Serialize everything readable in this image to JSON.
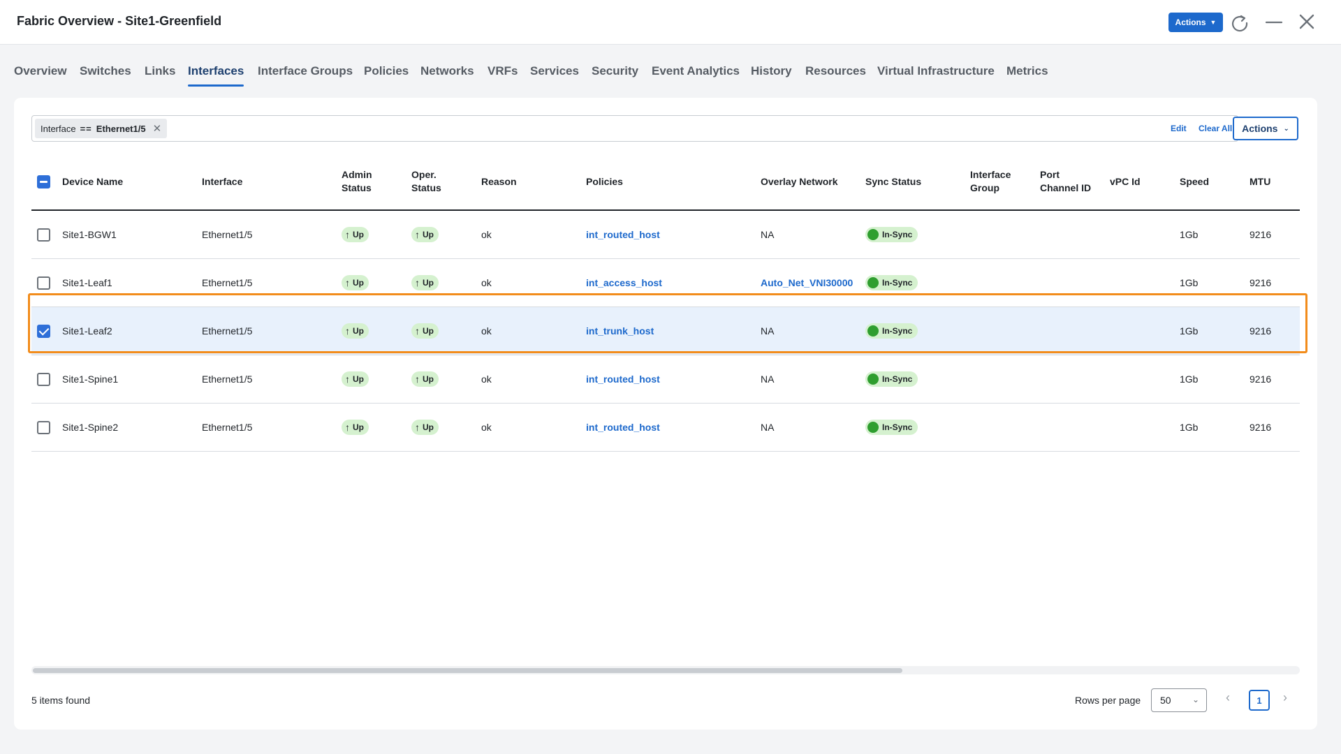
{
  "window": {
    "title": "Fabric Overview - Site1-Greenfield",
    "actions_label": "Actions",
    "icons": [
      "refresh-icon",
      "minimize-icon",
      "close-icon"
    ]
  },
  "tabs": [
    "Overview",
    "Switches",
    "Links",
    "Interfaces",
    "Interface Groups",
    "Policies",
    "Networks",
    "VRFs",
    "Services",
    "Security",
    "Event Analytics",
    "History",
    "Resources",
    "Virtual Infrastructure",
    "Metrics"
  ],
  "active_tab": "Interfaces",
  "filter": {
    "field": "Interface",
    "operator": "==",
    "value": "Ethernet1/5",
    "edit_label": "Edit",
    "clear_all_label": "Clear All"
  },
  "table_actions_label": "Actions",
  "columns": {
    "device_name": "Device Name",
    "interface": "Interface",
    "admin_status_1": "Admin",
    "admin_status_2": "Status",
    "oper_status_1": "Oper.",
    "oper_status_2": "Status",
    "reason": "Reason",
    "policies": "Policies",
    "overlay_network": "Overlay Network",
    "sync_status": "Sync Status",
    "interface_group_1": "Interface",
    "interface_group_2": "Group",
    "port_channel_1": "Port",
    "port_channel_2": "Channel ID",
    "vpc_id": "vPC Id",
    "speed": "Speed",
    "mtu": "MTU"
  },
  "rows": [
    {
      "device": "Site1-BGW1",
      "interface": "Ethernet1/5",
      "admin": "Up",
      "oper": "Up",
      "reason": "ok",
      "policy": "int_routed_host",
      "overlay": "NA",
      "overlay_link": false,
      "sync": "In-Sync",
      "speed": "1Gb",
      "mtu": "9216",
      "selected": false
    },
    {
      "device": "Site1-Leaf1",
      "interface": "Ethernet1/5",
      "admin": "Up",
      "oper": "Up",
      "reason": "ok",
      "policy": "int_access_host",
      "overlay": "Auto_Net_VNI30000",
      "overlay_link": true,
      "sync": "In-Sync",
      "speed": "1Gb",
      "mtu": "9216",
      "selected": false
    },
    {
      "device": "Site1-Leaf2",
      "interface": "Ethernet1/5",
      "admin": "Up",
      "oper": "Up",
      "reason": "ok",
      "policy": "int_trunk_host",
      "overlay": "NA",
      "overlay_link": false,
      "sync": "In-Sync",
      "speed": "1Gb",
      "mtu": "9216",
      "selected": true
    },
    {
      "device": "Site1-Spine1",
      "interface": "Ethernet1/5",
      "admin": "Up",
      "oper": "Up",
      "reason": "ok",
      "policy": "int_routed_host",
      "overlay": "NA",
      "overlay_link": false,
      "sync": "In-Sync",
      "speed": "1Gb",
      "mtu": "9216",
      "selected": false
    },
    {
      "device": "Site1-Spine2",
      "interface": "Ethernet1/5",
      "admin": "Up",
      "oper": "Up",
      "reason": "ok",
      "policy": "int_routed_host",
      "overlay": "NA",
      "overlay_link": false,
      "sync": "In-Sync",
      "speed": "1Gb",
      "mtu": "9216",
      "selected": false
    }
  ],
  "footer": {
    "items_found": "5 items found",
    "rows_per_page_label": "Rows per page",
    "rows_per_page_value": "50",
    "current_page": "1"
  },
  "colors": {
    "primary": "#1d69cc",
    "status_green_bg": "#d5f1cf",
    "status_green_dot": "#2f9e2f",
    "selected_row_bg": "#e8f1fc",
    "highlight_border": "#f28c1b"
  }
}
